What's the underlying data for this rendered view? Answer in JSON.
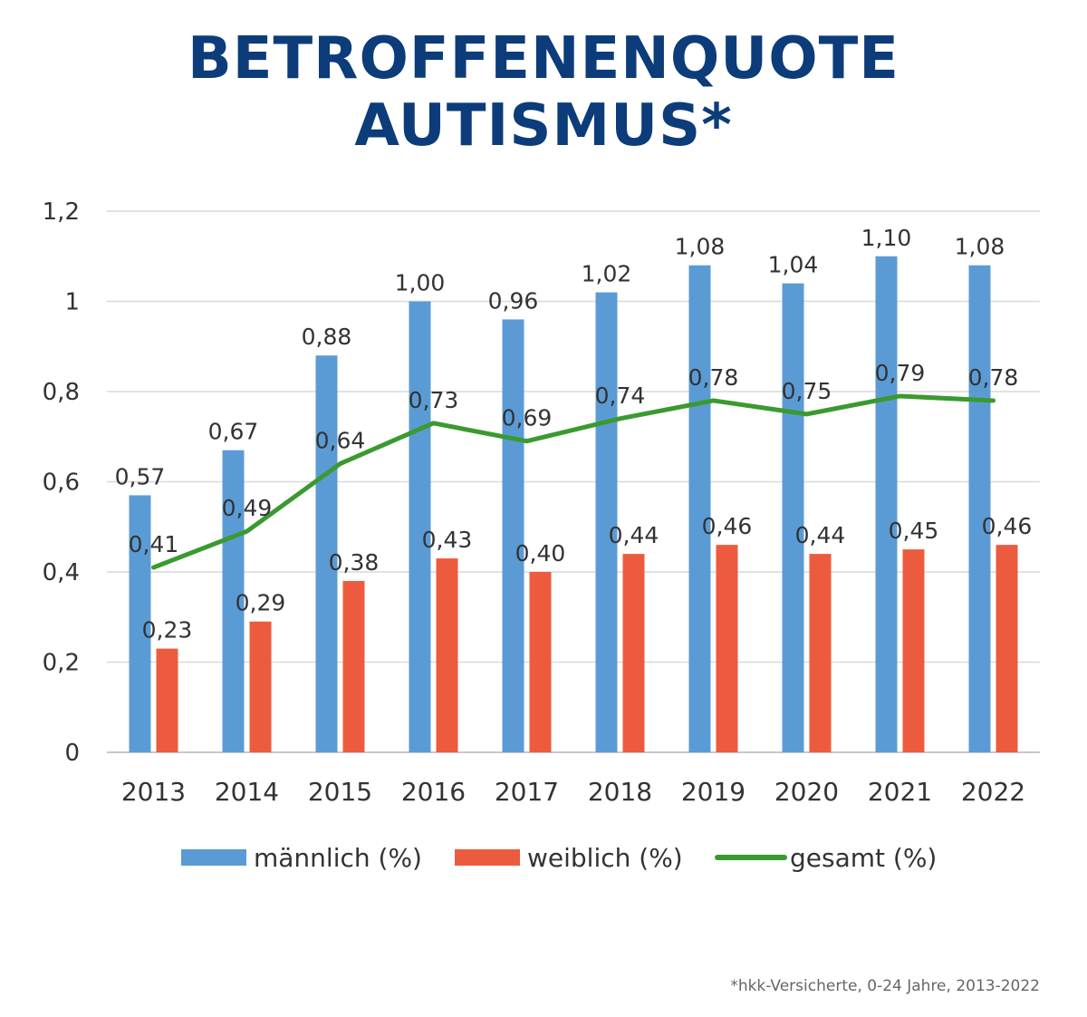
{
  "title": "BETROFFENENQUOTE AUTISMUS*",
  "footnote": "*hkk-Versicherte, 0-24 Jahre, 2013-2022",
  "chart_data": {
    "type": "bar",
    "categories": [
      "2013",
      "2014",
      "2015",
      "2016",
      "2017",
      "2018",
      "2019",
      "2020",
      "2021",
      "2022"
    ],
    "series": [
      {
        "name": "männlich (%)",
        "type": "bar",
        "color": "#5b9bd5",
        "values": [
          0.57,
          0.67,
          0.88,
          1.0,
          0.96,
          1.02,
          1.08,
          1.04,
          1.1,
          1.08
        ],
        "labels": [
          "0,57",
          "0,67",
          "0,88",
          "1,00",
          "0,96",
          "1,02",
          "1,08",
          "1,04",
          "1,10",
          "1,08"
        ]
      },
      {
        "name": "weiblich (%)",
        "type": "bar",
        "color": "#ed5b3e",
        "values": [
          0.23,
          0.29,
          0.38,
          0.43,
          0.4,
          0.44,
          0.46,
          0.44,
          0.45,
          0.46
        ],
        "labels": [
          "0,23",
          "0,29",
          "0,38",
          "0,43",
          "0,40",
          "0,44",
          "0,46",
          "0,44",
          "0,45",
          "0,46"
        ]
      },
      {
        "name": "gesamt (%)",
        "type": "line",
        "color": "#3a9a2f",
        "values": [
          0.41,
          0.49,
          0.64,
          0.73,
          0.69,
          0.74,
          0.78,
          0.75,
          0.79,
          0.78
        ],
        "labels": [
          "0,41",
          "0,49",
          "0,64",
          "0,73",
          "0,69",
          "0,74",
          "0,78",
          "0,75",
          "0,79",
          "0,78"
        ]
      }
    ],
    "ylim": [
      0,
      1.2
    ],
    "yticks": [
      0,
      0.2,
      0.4,
      0.6,
      0.8,
      1,
      1.2
    ],
    "ytick_labels": [
      "0",
      "0,2",
      "0,4",
      "0,6",
      "0,8",
      "1",
      "1,2"
    ],
    "grid": true,
    "legend": "bottom",
    "xlabel": "",
    "ylabel": ""
  }
}
